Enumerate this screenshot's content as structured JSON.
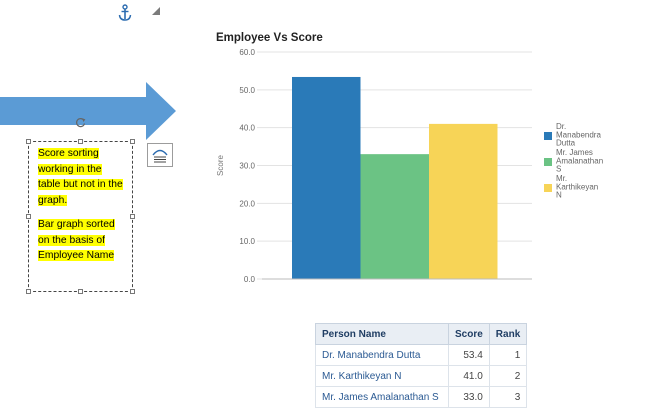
{
  "note": {
    "para1": "Score sorting working in the table but not in the graph.",
    "para2": "Bar graph sorted on the basis of Employee Name"
  },
  "colors": {
    "arrow": "#5b9bd5",
    "highlight": "#ffff00",
    "series": [
      "#2a7ab8",
      "#6bc384",
      "#f7d457"
    ]
  },
  "chart_data": {
    "type": "bar",
    "title": "Employee Vs Score",
    "xlabel": "",
    "ylabel": "Score",
    "ylim": [
      0,
      60
    ],
    "yticks": [
      "0.0",
      "10.0",
      "20.0",
      "30.0",
      "40.0",
      "50.0",
      "60.0"
    ],
    "series": [
      {
        "name": "Dr. Manabendra Dutta",
        "legend_lines": [
          "Dr.",
          "Manabendra",
          "Dutta"
        ],
        "value": 53.4
      },
      {
        "name": "Mr. James Amalanathan S",
        "legend_lines": [
          "Mr. James",
          "Amalanathan",
          "S"
        ],
        "value": 33.0
      },
      {
        "name": "Mr. Karthikeyan N",
        "legend_lines": [
          "Mr.",
          "Karthikeyan",
          "N"
        ],
        "value": 41.0
      }
    ]
  },
  "table": {
    "headers": [
      "Person Name",
      "Score",
      "Rank"
    ],
    "rows": [
      [
        "Dr. Manabendra Dutta",
        "53.4",
        "1"
      ],
      [
        "Mr. Karthikeyan N",
        "41.0",
        "2"
      ],
      [
        "Mr. James Amalanathan S",
        "33.0",
        "3"
      ]
    ]
  }
}
